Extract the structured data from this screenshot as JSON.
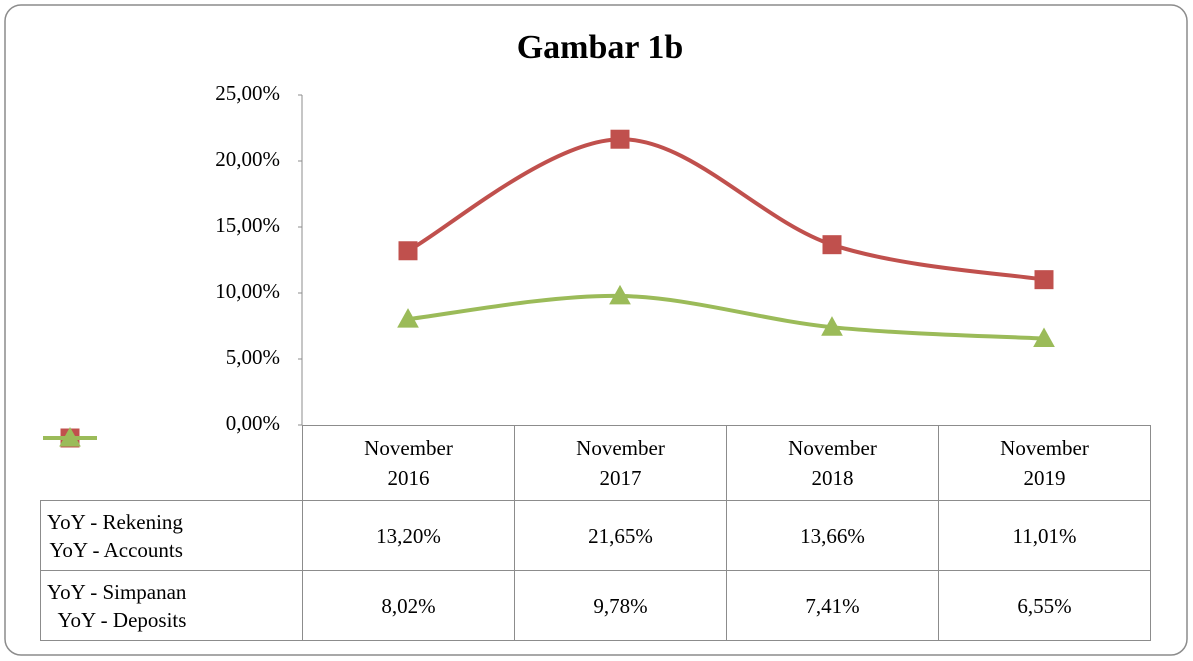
{
  "chart_data": {
    "type": "line",
    "title": "Gambar 1b",
    "categories": [
      "November\n2016",
      "November\n2017",
      "November\n2018",
      "November\n2019"
    ],
    "series": [
      {
        "name": "YoY - Rekening\nYoY - Accounts",
        "color": "#c0504d",
        "marker": "square",
        "values": [
          13.2,
          21.65,
          13.66,
          11.01
        ],
        "value_labels": [
          "13,20%",
          "21,65%",
          "13,66%",
          "11,01%"
        ]
      },
      {
        "name": "YoY - Simpanan\nYoY - Deposits",
        "color": "#9bbb59",
        "marker": "triangle",
        "values": [
          8.02,
          9.78,
          7.41,
          6.55
        ],
        "value_labels": [
          "8,02%",
          "9,78%",
          "7,41%",
          "6,55%"
        ]
      }
    ],
    "ylim": [
      0,
      25
    ],
    "yticks": [
      {
        "value": 0,
        "label": "0,00%"
      },
      {
        "value": 5,
        "label": "5,00%"
      },
      {
        "value": 10,
        "label": "10,00%"
      },
      {
        "value": 15,
        "label": "15,00%"
      },
      {
        "value": 20,
        "label": "20,00%"
      },
      {
        "value": 25,
        "label": "25,00%"
      }
    ],
    "smooth": true,
    "grid": false
  }
}
